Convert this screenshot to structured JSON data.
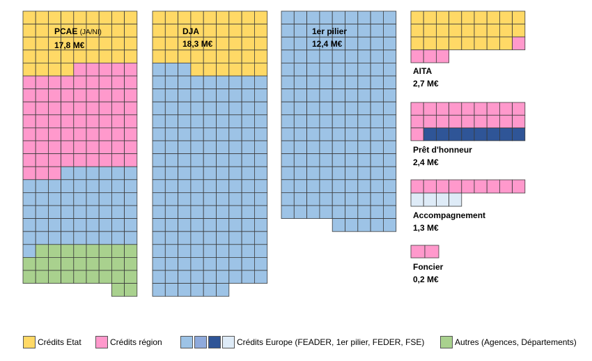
{
  "chart_data": {
    "type": "waffle",
    "blocks": [
      {
        "id": "pcae",
        "title": "PCAE",
        "subtitle": "(JA/NI)",
        "value": "17,8 M€",
        "grid_cols": 9,
        "rows": [
          [
            "etat",
            "etat",
            "etat",
            "etat",
            "etat",
            "etat",
            "etat",
            "etat",
            "etat"
          ],
          [
            "etat",
            "etat",
            "etat",
            "etat",
            "etat",
            "etat",
            "etat",
            "etat",
            "etat"
          ],
          [
            "etat",
            "etat",
            "etat",
            "etat",
            "etat",
            "etat",
            "etat",
            "etat",
            "etat"
          ],
          [
            "etat",
            "etat",
            "etat",
            "etat",
            "etat",
            "etat",
            "etat",
            "etat",
            "etat"
          ],
          [
            "etat",
            "etat",
            "etat",
            "etat",
            "region",
            "region",
            "region",
            "region",
            "region"
          ],
          [
            "region",
            "region",
            "region",
            "region",
            "region",
            "region",
            "region",
            "region",
            "region"
          ],
          [
            "region",
            "region",
            "region",
            "region",
            "region",
            "region",
            "region",
            "region",
            "region"
          ],
          [
            "region",
            "region",
            "region",
            "region",
            "region",
            "region",
            "region",
            "region",
            "region"
          ],
          [
            "region",
            "region",
            "region",
            "region",
            "region",
            "region",
            "region",
            "region",
            "region"
          ],
          [
            "region",
            "region",
            "region",
            "region",
            "region",
            "region",
            "region",
            "region",
            "region"
          ],
          [
            "region",
            "region",
            "region",
            "region",
            "region",
            "region",
            "region",
            "region",
            "region"
          ],
          [
            "region",
            "region",
            "region",
            "region",
            "region",
            "region",
            "region",
            "region",
            "region"
          ],
          [
            "region",
            "region",
            "region",
            "europe",
            "europe",
            "europe",
            "europe",
            "europe",
            "europe"
          ],
          [
            "europe",
            "europe",
            "europe",
            "europe",
            "europe",
            "europe",
            "europe",
            "europe",
            "europe"
          ],
          [
            "europe",
            "europe",
            "europe",
            "europe",
            "europe",
            "europe",
            "europe",
            "europe",
            "europe"
          ],
          [
            "europe",
            "europe",
            "europe",
            "europe",
            "europe",
            "europe",
            "europe",
            "europe",
            "europe"
          ],
          [
            "europe",
            "europe",
            "europe",
            "europe",
            "europe",
            "europe",
            "europe",
            "europe",
            "europe"
          ],
          [
            "europe",
            "europe",
            "europe",
            "europe",
            "europe",
            "europe",
            "europe",
            "europe",
            "europe"
          ],
          [
            "europe",
            "autres",
            "autres",
            "autres",
            "autres",
            "autres",
            "autres",
            "autres",
            "autres"
          ],
          [
            "autres",
            "autres",
            "autres",
            "autres",
            "autres",
            "autres",
            "autres",
            "autres",
            "autres"
          ],
          [
            "autres",
            "autres",
            "autres",
            "autres",
            "autres",
            "autres",
            "autres",
            "autres",
            "autres"
          ],
          [
            null,
            null,
            null,
            null,
            null,
            null,
            null,
            "autres",
            "autres"
          ]
        ]
      },
      {
        "id": "dja",
        "title": "DJA",
        "subtitle": "",
        "value": "18,3 M€",
        "grid_cols": 9,
        "rows": [
          [
            "etat",
            "etat",
            "etat",
            "etat",
            "etat",
            "etat",
            "etat",
            "etat",
            "etat"
          ],
          [
            "etat",
            "etat",
            "etat",
            "etat",
            "etat",
            "etat",
            "etat",
            "etat",
            "etat"
          ],
          [
            "etat",
            "etat",
            "etat",
            "etat",
            "etat",
            "etat",
            "etat",
            "etat",
            "etat"
          ],
          [
            "etat",
            "etat",
            "etat",
            "etat",
            "etat",
            "etat",
            "etat",
            "etat",
            "etat"
          ],
          [
            "europe",
            "europe",
            "europe",
            "etat",
            "etat",
            "etat",
            "etat",
            "etat",
            "etat"
          ],
          [
            "europe",
            "europe",
            "europe",
            "europe",
            "europe",
            "europe",
            "europe",
            "europe",
            "europe"
          ],
          [
            "europe",
            "europe",
            "europe",
            "europe",
            "europe",
            "europe",
            "europe",
            "europe",
            "europe"
          ],
          [
            "europe",
            "europe",
            "europe",
            "europe",
            "europe",
            "europe",
            "europe",
            "europe",
            "europe"
          ],
          [
            "europe",
            "europe",
            "europe",
            "europe",
            "europe",
            "europe",
            "europe",
            "europe",
            "europe"
          ],
          [
            "europe",
            "europe",
            "europe",
            "europe",
            "europe",
            "europe",
            "europe",
            "europe",
            "europe"
          ],
          [
            "europe",
            "europe",
            "europe",
            "europe",
            "europe",
            "europe",
            "europe",
            "europe",
            "europe"
          ],
          [
            "europe",
            "europe",
            "europe",
            "europe",
            "europe",
            "europe",
            "europe",
            "europe",
            "europe"
          ],
          [
            "europe",
            "europe",
            "europe",
            "europe",
            "europe",
            "europe",
            "europe",
            "europe",
            "europe"
          ],
          [
            "europe",
            "europe",
            "europe",
            "europe",
            "europe",
            "europe",
            "europe",
            "europe",
            "europe"
          ],
          [
            "europe",
            "europe",
            "europe",
            "europe",
            "europe",
            "europe",
            "europe",
            "europe",
            "europe"
          ],
          [
            "europe",
            "europe",
            "europe",
            "europe",
            "europe",
            "europe",
            "europe",
            "europe",
            "europe"
          ],
          [
            "europe",
            "europe",
            "europe",
            "europe",
            "europe",
            "europe",
            "europe",
            "europe",
            "europe"
          ],
          [
            "europe",
            "europe",
            "europe",
            "europe",
            "europe",
            "europe",
            "europe",
            "europe",
            "europe"
          ],
          [
            "europe",
            "europe",
            "europe",
            "europe",
            "europe",
            "europe",
            "europe",
            "europe",
            "europe"
          ],
          [
            "europe",
            "europe",
            "europe",
            "europe",
            "europe",
            "europe",
            "europe",
            "europe",
            "europe"
          ],
          [
            "europe",
            "europe",
            "europe",
            "europe",
            "europe",
            "europe",
            "europe",
            "europe",
            "europe"
          ],
          [
            "europe",
            "europe",
            "europe",
            "europe",
            "europe",
            "europe",
            null,
            null,
            null
          ]
        ]
      },
      {
        "id": "pilier",
        "title": "1er pilier",
        "subtitle": "",
        "value": "12,4 M€",
        "grid_cols": 9,
        "rows": [
          [
            "europe",
            "europe",
            "europe",
            "europe",
            "europe",
            "europe",
            "europe",
            "europe",
            "europe"
          ],
          [
            "europe",
            "europe",
            "europe",
            "europe",
            "europe",
            "europe",
            "europe",
            "europe",
            "europe"
          ],
          [
            "europe",
            "europe",
            "europe",
            "europe",
            "europe",
            "europe",
            "europe",
            "europe",
            "europe"
          ],
          [
            "europe",
            "europe",
            "europe",
            "europe",
            "europe",
            "europe",
            "europe",
            "europe",
            "europe"
          ],
          [
            "europe",
            "europe",
            "europe",
            "europe",
            "europe",
            "europe",
            "europe",
            "europe",
            "europe"
          ],
          [
            "europe",
            "europe",
            "europe",
            "europe",
            "europe",
            "europe",
            "europe",
            "europe",
            "europe"
          ],
          [
            "europe",
            "europe",
            "europe",
            "europe",
            "europe",
            "europe",
            "europe",
            "europe",
            "europe"
          ],
          [
            "europe",
            "europe",
            "europe",
            "europe",
            "europe",
            "europe",
            "europe",
            "europe",
            "europe"
          ],
          [
            "europe",
            "europe",
            "europe",
            "europe",
            "europe",
            "europe",
            "europe",
            "europe",
            "europe"
          ],
          [
            "europe",
            "europe",
            "europe",
            "europe",
            "europe",
            "europe",
            "europe",
            "europe",
            "europe"
          ],
          [
            "europe",
            "europe",
            "europe",
            "europe",
            "europe",
            "europe",
            "europe",
            "europe",
            "europe"
          ],
          [
            "europe",
            "europe",
            "europe",
            "europe",
            "europe",
            "europe",
            "europe",
            "europe",
            "europe"
          ],
          [
            "europe",
            "europe",
            "europe",
            "europe",
            "europe",
            "europe",
            "europe",
            "europe",
            "europe"
          ],
          [
            "europe",
            "europe",
            "europe",
            "europe",
            "europe",
            "europe",
            "europe",
            "europe",
            "europe"
          ],
          [
            "europe",
            "europe",
            "europe",
            "europe",
            "europe",
            "europe",
            "europe",
            "europe",
            "europe"
          ],
          [
            "europe",
            "europe",
            "europe",
            "europe",
            "europe",
            "europe",
            "europe",
            "europe",
            "europe"
          ],
          [
            null,
            null,
            null,
            null,
            "europe",
            "europe",
            "europe",
            "europe",
            "europe"
          ]
        ]
      },
      {
        "id": "aita",
        "title": "AITA",
        "subtitle": "",
        "value": "2,7 M€",
        "grid_cols": 9,
        "rows": [
          [
            "etat",
            "etat",
            "etat",
            "etat",
            "etat",
            "etat",
            "etat",
            "etat",
            "etat"
          ],
          [
            "etat",
            "etat",
            "etat",
            "etat",
            "etat",
            "etat",
            "etat",
            "etat",
            "etat"
          ],
          [
            "etat",
            "etat",
            "etat",
            "etat",
            "etat",
            "etat",
            "etat",
            "etat",
            "region"
          ],
          [
            "region",
            "region",
            "region",
            null,
            null,
            null,
            null,
            null,
            null
          ]
        ]
      },
      {
        "id": "pret",
        "title": "Prêt d'honneur",
        "subtitle": "",
        "value": "2,4 M€",
        "grid_cols": 9,
        "rows": [
          [
            "region",
            "region",
            "region",
            "region",
            "region",
            "region",
            "region",
            "region",
            "region"
          ],
          [
            "region",
            "region",
            "region",
            "region",
            "region",
            "region",
            "region",
            "region",
            "region"
          ],
          [
            "region",
            "europe_dark",
            "europe_dark",
            "europe_dark",
            "europe_dark",
            "europe_dark",
            "europe_dark",
            "europe_dark",
            "europe_dark"
          ]
        ]
      },
      {
        "id": "accompagnement",
        "title": "Accompagnement",
        "subtitle": "",
        "value": "1,3 M€",
        "grid_cols": 9,
        "rows": [
          [
            "region",
            "region",
            "region",
            "region",
            "region",
            "region",
            "region",
            "region",
            "region"
          ],
          [
            "europe_light",
            "europe_light",
            "europe_light",
            "europe_light",
            null,
            null,
            null,
            null,
            null
          ]
        ]
      },
      {
        "id": "foncier",
        "title": "Foncier",
        "subtitle": "",
        "value": "0,2 M€",
        "grid_cols": 9,
        "rows": [
          [
            "region",
            "region",
            null,
            null,
            null,
            null,
            null,
            null,
            null
          ]
        ]
      }
    ],
    "colors": {
      "etat": "#FFD966",
      "region": "#FF99CC",
      "europe": "#9DC3E6",
      "europe_dark": "#2F5597",
      "europe_light": "#DEEBF7",
      "autres": "#A9D18E",
      "europe_mid": "#8FAADC",
      "cell_border": "#3A3A3A",
      "outline": "#000000"
    },
    "legend": [
      {
        "label": "Crédits Etat",
        "swatches": [
          "etat"
        ]
      },
      {
        "label": "Crédits région",
        "swatches": [
          "region"
        ]
      },
      {
        "label": "Crédits Europe (FEADER, 1er pilier, FEDER, FSE)",
        "swatches": [
          "europe",
          "europe_mid",
          "europe_dark",
          "europe_light"
        ]
      },
      {
        "label": "Autres (Agences, Départements)",
        "swatches": [
          "autres"
        ]
      }
    ]
  }
}
